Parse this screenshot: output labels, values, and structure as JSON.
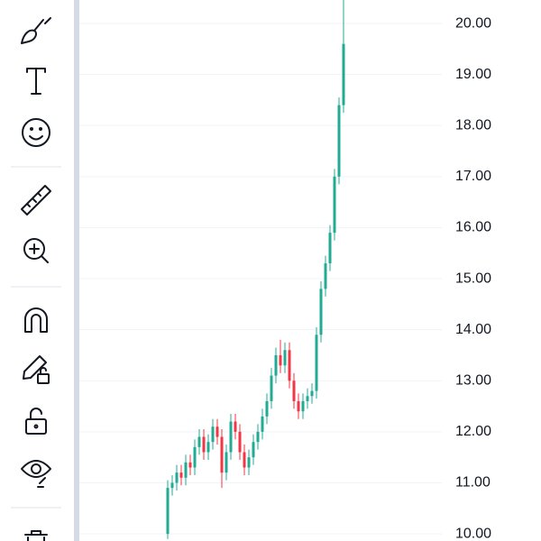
{
  "chart_data": {
    "type": "candlestick",
    "up_color": "#22ab94",
    "down_color": "#f23645",
    "grid": true,
    "ylim": [
      9.86,
      20.46
    ],
    "yticks": [
      {
        "value": 10,
        "label": "10.00"
      },
      {
        "value": 11,
        "label": "11.00"
      },
      {
        "value": 12,
        "label": "12.00"
      },
      {
        "value": 13,
        "label": "13.00"
      },
      {
        "value": 14,
        "label": "14.00"
      },
      {
        "value": 15,
        "label": "15.00"
      },
      {
        "value": 16,
        "label": "16.00"
      },
      {
        "value": 17,
        "label": "17.00"
      },
      {
        "value": 18,
        "label": "18.00"
      },
      {
        "value": 19,
        "label": "19.00"
      },
      {
        "value": 20,
        "label": "20.00"
      }
    ],
    "open": [
      10.0,
      10.9,
      11.0,
      11.2,
      11.1,
      11.4,
      11.3,
      11.7,
      11.9,
      11.6,
      11.8,
      12.1,
      11.9,
      11.2,
      11.6,
      12.2,
      12.0,
      11.6,
      11.3,
      11.5,
      11.8,
      12.0,
      12.3,
      12.6,
      13.1,
      13.5,
      13.3,
      13.6,
      13.0,
      12.6,
      12.4,
      12.6,
      12.7,
      12.8,
      13.9,
      14.8,
      15.3,
      15.9,
      17.0,
      18.4
    ],
    "high": [
      11.05,
      11.15,
      11.35,
      11.35,
      11.55,
      11.55,
      11.85,
      12.05,
      12.05,
      11.95,
      12.25,
      12.25,
      12.05,
      11.75,
      12.35,
      12.35,
      12.15,
      11.75,
      11.65,
      11.95,
      12.15,
      12.45,
      12.75,
      13.25,
      13.65,
      13.8,
      13.75,
      13.75,
      13.15,
      12.75,
      12.75,
      12.85,
      12.95,
      14.05,
      14.95,
      15.45,
      16.05,
      17.15,
      18.55,
      20.6
    ],
    "low": [
      9.9,
      10.75,
      10.85,
      10.95,
      10.95,
      11.15,
      11.15,
      11.55,
      11.45,
      11.45,
      11.65,
      11.75,
      10.9,
      11.05,
      11.45,
      11.85,
      11.45,
      11.15,
      11.15,
      11.35,
      11.65,
      11.85,
      12.15,
      12.45,
      12.95,
      13.15,
      13.15,
      12.85,
      12.45,
      12.25,
      12.25,
      12.45,
      12.55,
      12.65,
      13.75,
      14.65,
      15.15,
      15.75,
      16.85,
      18.25
    ],
    "close": [
      10.9,
      11.0,
      11.2,
      11.1,
      11.4,
      11.3,
      11.7,
      11.9,
      11.6,
      11.8,
      12.1,
      11.9,
      11.2,
      11.6,
      12.2,
      12.0,
      11.6,
      11.3,
      11.5,
      11.8,
      12.0,
      12.3,
      12.6,
      13.1,
      13.5,
      13.3,
      13.6,
      13.0,
      12.6,
      12.4,
      12.6,
      12.7,
      12.8,
      13.9,
      14.8,
      15.3,
      15.9,
      17.0,
      18.4,
      19.6
    ]
  }
}
